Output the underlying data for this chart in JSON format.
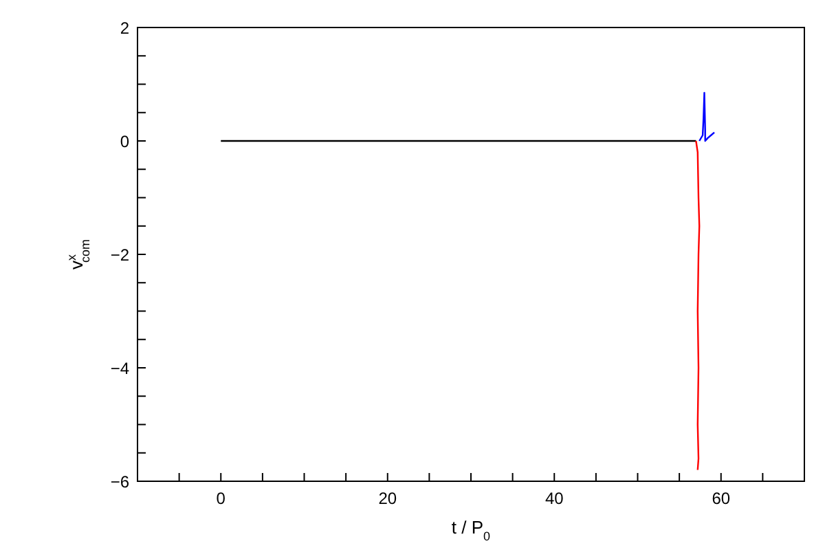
{
  "chart_data": {
    "type": "line",
    "xlabel": "t / P$_{0}$",
    "ylabel": "v$^{x}$$_{com}$",
    "xlim": [
      -10,
      70
    ],
    "ylim": [
      -6,
      2
    ],
    "xticks": [
      {
        "value": -5,
        "label": null
      },
      0,
      {
        "value": 5,
        "label": null
      },
      {
        "value": 10,
        "label": null
      },
      {
        "value": 15,
        "label": null
      },
      20,
      {
        "value": 25,
        "label": null
      },
      {
        "value": 30,
        "label": null
      },
      {
        "value": 35,
        "label": null
      },
      40,
      {
        "value": 45,
        "label": null
      },
      {
        "value": 50,
        "label": null
      },
      {
        "value": 55,
        "label": null
      },
      60,
      {
        "value": 65,
        "label": null
      }
    ],
    "yticks": [
      -6,
      {
        "value": -5.5,
        "label": null
      },
      {
        "value": -5,
        "label": null
      },
      {
        "value": -4.5,
        "label": null
      },
      -4,
      {
        "value": -3.5,
        "label": null
      },
      {
        "value": -3,
        "label": null
      },
      {
        "value": -2.5,
        "label": null
      },
      -2,
      {
        "value": -1.5,
        "label": null
      },
      {
        "value": -1,
        "label": null
      },
      {
        "value": -0.5,
        "label": null
      },
      0,
      {
        "value": 0.5,
        "label": null
      },
      {
        "value": 1,
        "label": null
      },
      {
        "value": 1.5,
        "label": null
      },
      2
    ],
    "marker": "none",
    "line_style": "solid",
    "series": [
      {
        "color": "#000000",
        "x": [
          0,
          57
        ],
        "values": [
          0,
          0
        ]
      },
      {
        "color": "#ff0000",
        "x": [
          57.0,
          57.2,
          57.3,
          57.4,
          57.3,
          57.2,
          57.3,
          57.2,
          57.3,
          57.2
        ],
        "values": [
          0,
          -0.2,
          -1,
          -1.5,
          -2,
          -3,
          -4,
          -5,
          -5.6,
          -5.8
        ]
      },
      {
        "color": "#0000ff",
        "x": [
          57.4,
          57.8,
          57.9,
          58.0,
          58.1,
          58.1,
          58.4,
          58.8,
          59.2
        ],
        "values": [
          0,
          0.1,
          0.4,
          0.85,
          0.2,
          0,
          0.05,
          0.1,
          0.15
        ]
      }
    ]
  }
}
